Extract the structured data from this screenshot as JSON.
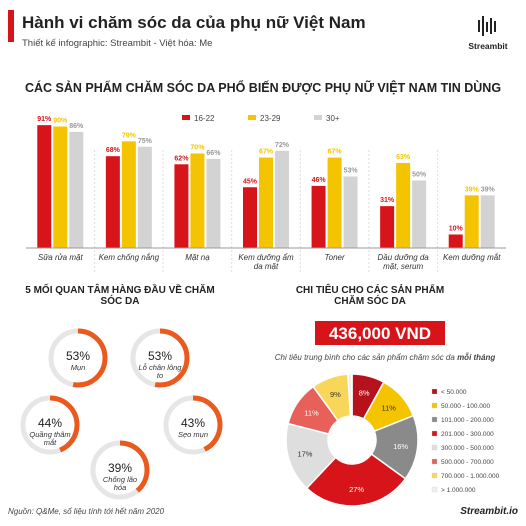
{
  "header": {
    "title": "Hành vi chăm sóc da của phụ nữ Việt Nam",
    "subtitle": "Thiết kế infographic: Streambit - Việt hóa: Me",
    "logo": "Streambit"
  },
  "chart_data": [
    {
      "type": "bar",
      "title": "CÁC SẢN PHẨM CHĂM SÓC DA PHỔ BIẾN ĐƯỢC PHỤ NỮ VIỆT NAM TIN DÙNG",
      "categories": [
        "Sữa rửa mặt",
        "Kem chống nắng",
        "Mặt nạ",
        "Kem dưỡng ẩm da mặt",
        "Toner",
        "Dầu dưỡng da mặt, serum",
        "Kem dưỡng mắt"
      ],
      "series": [
        {
          "name": "16-22",
          "color": "#d7141a",
          "values": [
            91,
            68,
            62,
            45,
            46,
            31,
            10
          ],
          "value_labels": [
            "91%",
            "68%",
            "62%",
            "45%",
            "46%",
            "31%",
            "10%"
          ]
        },
        {
          "name": "23-29",
          "color": "#f5c400",
          "values": [
            90,
            79,
            70,
            67,
            67,
            63,
            39
          ],
          "value_labels": [
            "90%",
            "79%",
            "70%",
            "67%",
            "67%",
            "63%",
            "39%"
          ]
        },
        {
          "name": "30+",
          "color": "#d3d3d3",
          "values": [
            86,
            75,
            66,
            72,
            53,
            50,
            39
          ],
          "value_labels": [
            "86%",
            "75%",
            "66%",
            "72%",
            "53%",
            "50%",
            "39%"
          ]
        }
      ]
    },
    {
      "type": "pie",
      "title": "CHI TIÊU CHO CÁC SẢN PHẨM CHĂM SÓC DA",
      "categories": [
        "< 50.000",
        "50.000 - 100.000",
        "101.000 - 200.000",
        "201.000 - 300.000",
        "300.000 - 500.000",
        "500.000 - 700.000",
        "700.000 - 1.000.000",
        "> 1.000.000"
      ],
      "values": [
        8,
        11,
        16,
        27,
        17,
        11,
        9,
        1
      ],
      "value_labels": [
        "8%",
        "11%",
        "16%",
        "27%",
        "17%",
        "11%",
        "9%",
        null
      ],
      "colors": [
        "#b5121b",
        "#f5c400",
        "#8a8a8a",
        "#d7141a",
        "#dedede",
        "#e8605a",
        "#f7d65a",
        "#efefef"
      ]
    }
  ],
  "concerns": {
    "title": "5 MỐI QUAN TÂM HÀNG ĐẦU VỀ CHĂM SÓC DA",
    "color": "#ea5a1e",
    "items": [
      {
        "label": "Mụn",
        "value": 53,
        "value_label": "53%"
      },
      {
        "label": "Lỗ chân lông to",
        "value": 53,
        "value_label": "53%"
      },
      {
        "label": "Quầng thâm mắt",
        "value": 44,
        "value_label": "44%"
      },
      {
        "label": "Sẹo mụn",
        "value": 43,
        "value_label": "43%"
      },
      {
        "label": "Chống lão hóa",
        "value": 39,
        "value_label": "39%"
      }
    ]
  },
  "spending": {
    "amount": "436,000 VND",
    "caption": "Chi tiêu trung bình cho các sản phẩm chăm sóc da",
    "caption_emphasis": "mỗi tháng"
  },
  "footer": {
    "source": "Nguồn: Q&Me, số liệu tính tới hết năm 2020",
    "site": "Streambit.io"
  }
}
